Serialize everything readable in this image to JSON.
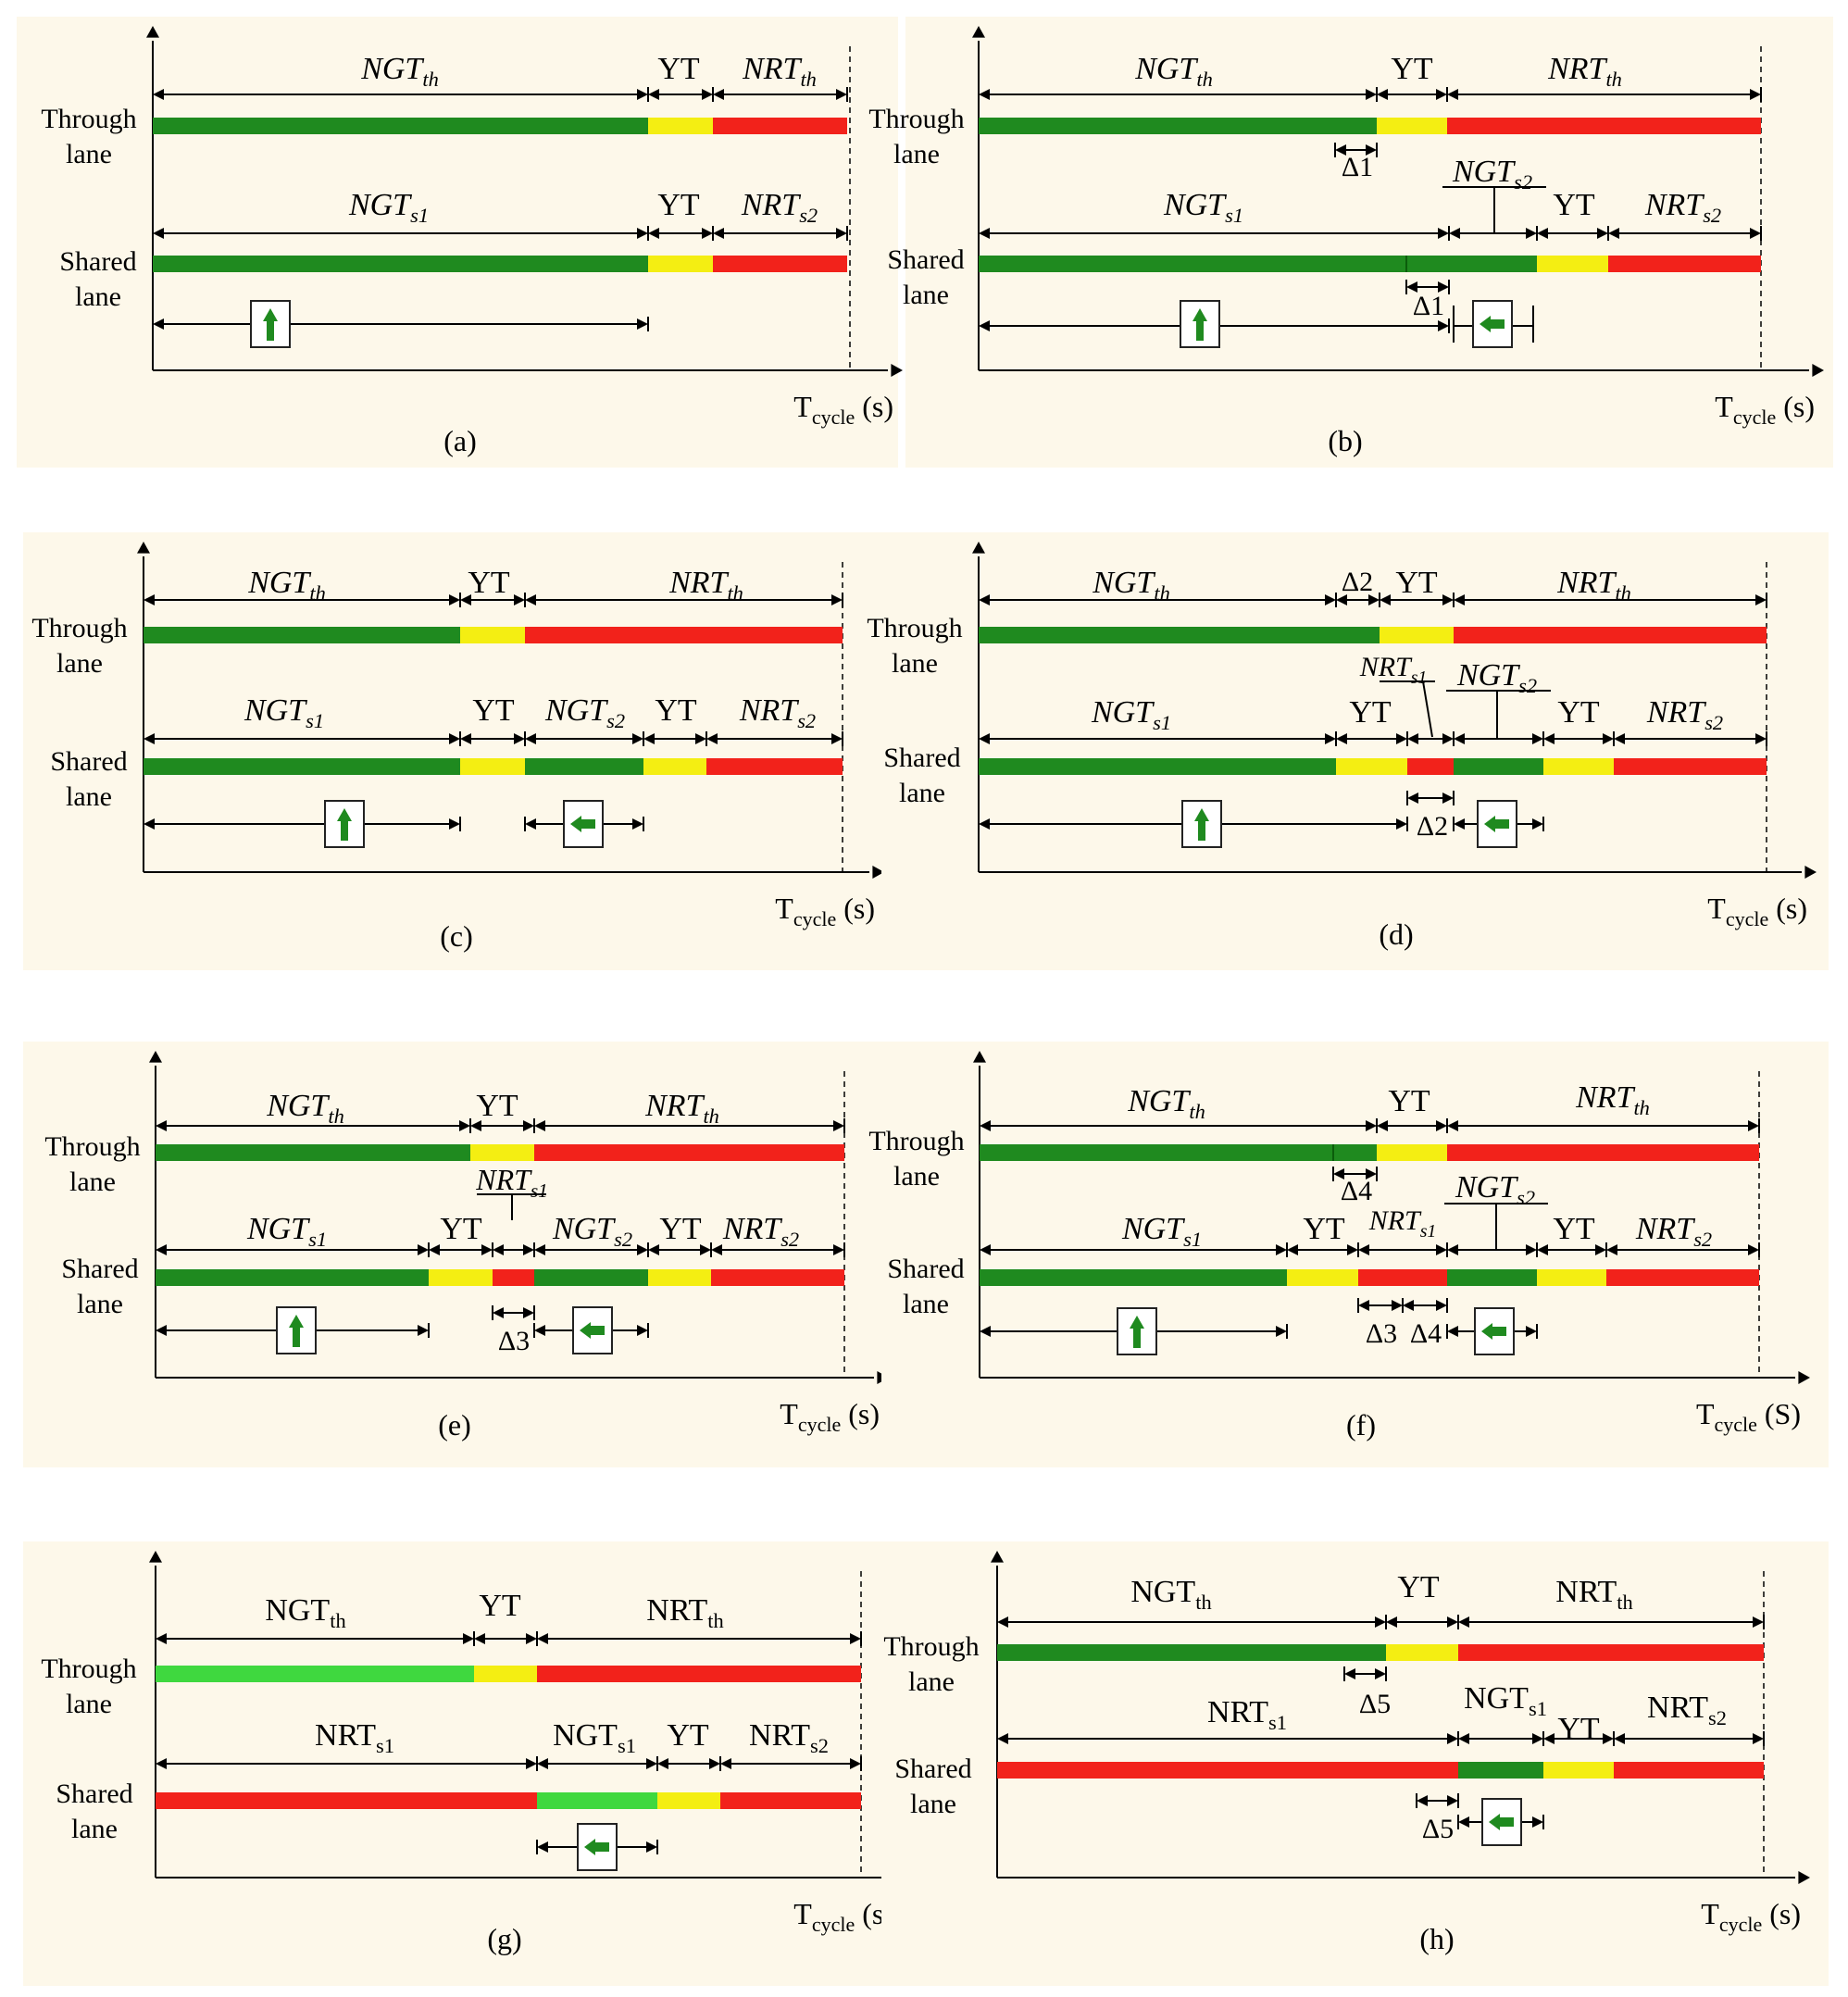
{
  "colors": {
    "background": "#fdf8ea",
    "green": "#1f8a1f",
    "light_green": "#3fd83f",
    "yellow": "#f4ee12",
    "red": "#f2221b",
    "axis": "#000000"
  },
  "common": {
    "through_lane": [
      "Through",
      "lane"
    ],
    "shared_lane": [
      "Shared",
      "lane"
    ],
    "x_axis_main": "T",
    "x_axis_sub": "cycle",
    "x_axis_unit_s": "(s)",
    "x_axis_unit_S": "(S)"
  },
  "panels": [
    {
      "id": "a",
      "caption": "(a)",
      "through": {
        "ngt": [
          "NGT",
          "th"
        ],
        "yt": "YT",
        "nrt": [
          "NRT",
          "th"
        ]
      },
      "shared": {
        "segments": [
          "NGT_s1",
          "YT",
          "NRT_s2"
        ],
        "labels": [
          [
            "NGT",
            "s1"
          ],
          "YT",
          [
            "NRT",
            "s2"
          ]
        ]
      },
      "arrows": [
        "up"
      ],
      "deltas": [],
      "unit": "(s)"
    },
    {
      "id": "b",
      "caption": "(b)",
      "through": {
        "ngt": [
          "NGT",
          "th"
        ],
        "yt": "YT",
        "nrt": [
          "NRT",
          "th"
        ]
      },
      "shared": {
        "segments": [
          "NGT_s1",
          "NGT_s2",
          "YT",
          "NRT_s2"
        ],
        "labels": [
          [
            "NGT",
            "s1"
          ],
          [
            "NGT",
            "s2"
          ],
          "YT",
          [
            "NRT",
            "s2"
          ]
        ]
      },
      "arrows": [
        "up",
        "left"
      ],
      "deltas": [
        "Δ1",
        "Δ1"
      ],
      "unit": "(s)"
    },
    {
      "id": "c",
      "caption": "(c)",
      "through": {
        "ngt": [
          "NGT",
          "th"
        ],
        "yt": "YT",
        "nrt": [
          "NRT",
          "th"
        ]
      },
      "shared": {
        "segments": [
          "NGT_s1",
          "YT",
          "NGT_s2",
          "YT",
          "NRT_s2"
        ],
        "labels": [
          [
            "NGT",
            "s1"
          ],
          "YT",
          [
            "NGT",
            "s2"
          ],
          "YT",
          [
            "NRT",
            "s2"
          ]
        ]
      },
      "arrows": [
        "up",
        "left"
      ],
      "deltas": [],
      "unit": "(s)"
    },
    {
      "id": "d",
      "caption": "(d)",
      "through": {
        "ngt": [
          "NGT",
          "th"
        ],
        "yt": "YT",
        "nrt": [
          "NRT",
          "th"
        ]
      },
      "shared": {
        "segments": [
          "NGT_s1",
          "YT",
          "NRT_s1",
          "NGT_s2",
          "YT",
          "NRT_s2"
        ],
        "labels": [
          [
            "NGT",
            "s1"
          ],
          "YT",
          [
            "NRT",
            "s1"
          ],
          [
            "NGT",
            "s2"
          ],
          "YT",
          [
            "NRT",
            "s2"
          ]
        ]
      },
      "arrows": [
        "up",
        "left"
      ],
      "deltas": [
        "Δ2",
        "Δ2"
      ],
      "unit": "(s)"
    },
    {
      "id": "e",
      "caption": "(e)",
      "through": {
        "ngt": [
          "NGT",
          "th"
        ],
        "yt": "YT",
        "nrt": [
          "NRT",
          "th"
        ]
      },
      "shared": {
        "segments": [
          "NGT_s1",
          "YT",
          "NRT_s1",
          "NGT_s2",
          "YT",
          "NRT_s2"
        ],
        "labels": [
          [
            "NGT",
            "s1"
          ],
          "YT",
          [
            "NRT",
            "s1"
          ],
          [
            "NGT",
            "s2"
          ],
          "YT",
          [
            "NRT",
            "s2"
          ]
        ]
      },
      "arrows": [
        "up",
        "left"
      ],
      "deltas": [
        "Δ3"
      ],
      "unit": "(s)"
    },
    {
      "id": "f",
      "caption": "(f)",
      "through": {
        "ngt": [
          "NGT",
          "th"
        ],
        "yt": "YT",
        "nrt": [
          "NRT",
          "th"
        ]
      },
      "shared": {
        "segments": [
          "NGT_s1",
          "YT",
          "NRT_s1",
          "NGT_s2",
          "YT",
          "NRT_s2"
        ],
        "labels": [
          [
            "NGT",
            "s1"
          ],
          "YT",
          [
            "NRT",
            "s1"
          ],
          [
            "NGT",
            "s2"
          ],
          "YT",
          [
            "NRT",
            "s2"
          ]
        ]
      },
      "arrows": [
        "up",
        "left"
      ],
      "deltas": [
        "Δ4",
        "Δ3",
        "Δ4"
      ],
      "unit": "(S)"
    },
    {
      "id": "g",
      "caption": "(g)",
      "through": {
        "ngt": [
          "NGT",
          "th"
        ],
        "yt": "YT",
        "nrt": [
          "NRT",
          "th"
        ]
      },
      "shared": {
        "segments": [
          "NRT_s1",
          "NGT_s1",
          "YT",
          "NRT_s2"
        ],
        "labels": [
          [
            "NRT",
            "s1"
          ],
          [
            "NGT",
            "s1"
          ],
          "YT",
          [
            "NRT",
            "s2"
          ]
        ]
      },
      "arrows": [
        "left"
      ],
      "deltas": [],
      "unit": "(s)"
    },
    {
      "id": "h",
      "caption": "(h)",
      "through": {
        "ngt": [
          "NGT",
          "th"
        ],
        "yt": "YT",
        "nrt": [
          "NRT",
          "th"
        ]
      },
      "shared": {
        "segments": [
          "NRT_s1",
          "NGT_s1",
          "YT",
          "NRT_s2"
        ],
        "labels": [
          [
            "NRT",
            "s1"
          ],
          [
            "NGT",
            "s1"
          ],
          "YT",
          [
            "NRT",
            "s2"
          ]
        ]
      },
      "arrows": [
        "left"
      ],
      "deltas": [
        "Δ5",
        "Δ5"
      ],
      "unit": "(s)"
    }
  ]
}
